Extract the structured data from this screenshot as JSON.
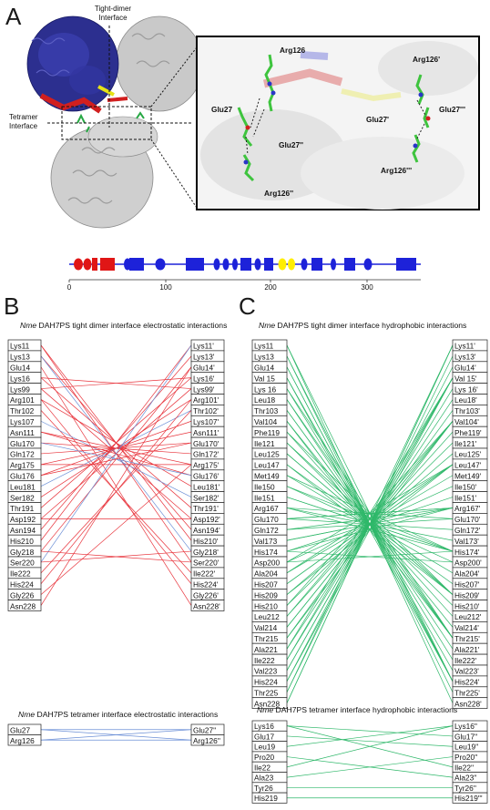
{
  "panel_a": {
    "letter": "A",
    "tight_dimer_label_line1": "Tight-dimer",
    "tight_dimer_label_line2": "Interface",
    "tetramer_label_line1": "Tetramer",
    "tetramer_label_line2": "Interface",
    "inset_labels": {
      "arg126": "Arg126",
      "glu27": "Glu27",
      "glu27pp": "Glu27''",
      "arg126pp": "Arg126''",
      "arg126p": "Arg126'",
      "glu27p": "Glu27'",
      "glu27ppp": "Glu27'''",
      "arg126ppp": "Arg126'''"
    },
    "ruler_ticks": [
      "0",
      "100",
      "200",
      "300"
    ]
  },
  "panel_b": {
    "letter": "B",
    "title_prefix": "Nme",
    "title_main": " DAH7PS tight dimer interface electrostatic interactions",
    "left": [
      "Lys11",
      "Lys13",
      "Glu14",
      "Lys16",
      "Lys99",
      "Arg101",
      "Thr102",
      "Lys107",
      "Asn111",
      "Glu170",
      "Gln172",
      "Arg175",
      "Glu176",
      "Leu181",
      "Ser182",
      "Thr191",
      "Asp192",
      "Asn194",
      "His210",
      "Gly218",
      "Ser220",
      "Ile222",
      "His224",
      "Gly226",
      "Asn228"
    ],
    "right": [
      "Lys11'",
      "Lys13'",
      "Glu14'",
      "Lys16'",
      "Lys99'",
      "Arg101'",
      "Thr102'",
      "Lys107'",
      "Asn111'",
      "Glu170'",
      "Gln172'",
      "Arg175'",
      "Glu176'",
      "Leu181'",
      "Ser182'",
      "Thr191'",
      "Asp192'",
      "Asn194'",
      "His210'",
      "Gly218'",
      "Ser220'",
      "Ile222'",
      "His224'",
      "Gly226'",
      "Asn228'"
    ],
    "tetramer_title_prefix": "Nme",
    "tetramer_title_main": " DAH7PS tetramer interface electrostatic interactions",
    "tetramer_left": [
      "Glu27",
      "Arg126"
    ],
    "tetramer_right": [
      "Glu27''",
      "Arg126''"
    ]
  },
  "panel_c": {
    "letter": "C",
    "title_prefix": "Nme",
    "title_main": " DAH7PS tight dimer interface hydrophobic interactions",
    "left": [
      "Lys11",
      "Lys13",
      "Glu14",
      "Val 15",
      "Lys 16",
      "Leu18",
      "Thr103",
      "Val104",
      "Phe119",
      "Ile121",
      "Leu125",
      "Leu147",
      "Met149",
      "Ile150",
      "Ile151",
      "Arg167",
      "Glu170",
      "Gln172",
      "Val173",
      "His174",
      "Asp200",
      "Ala204",
      "His207",
      "His209",
      "His210",
      "Leu212",
      "Val214",
      "Thr215",
      "Ala221",
      "Ile222",
      "Val223",
      "His224",
      "Thr225",
      "Asn228"
    ],
    "right": [
      "Lys11'",
      "Lys13'",
      "Glu14'",
      "Val 15'",
      "Lys 16'",
      "Leu18'",
      "Thr103'",
      "Val104'",
      "Phe119'",
      "Ile121'",
      "Leu125'",
      "Leu147'",
      "Met149'",
      "Ile150'",
      "Ile151'",
      "Arg167'",
      "Glu170'",
      "Gln172'",
      "Val173'",
      "His174'",
      "Asp200'",
      "Ala204'",
      "His207'",
      "His209'",
      "His210'",
      "Leu212'",
      "Val214'",
      "Thr215'",
      "Ala221'",
      "Ile222'",
      "Val223'",
      "His224'",
      "Thr225'",
      "Asn228'"
    ],
    "tetramer_title_prefix": "Nme",
    "tetramer_title_main": " DAH7PS tetramer interface hydrophobic interactions",
    "tetramer_left": [
      "Lys16",
      "Glu17",
      "Leu19",
      "Pro20",
      "Ile22",
      "Ala23",
      "Tyr26",
      "His219"
    ],
    "tetramer_right": [
      "Lys16''",
      "Glu17''",
      "Leu19''",
      "Pro20''",
      "Ile22''",
      "Ala23''",
      "Tyr26''",
      "His219'''"
    ]
  },
  "colors": {
    "electrostatic_red": "#e8343c",
    "electrostatic_blue": "#6b8fd6",
    "hydrophobic_green": "#2fb86a",
    "helix_blue": "#1d22d9",
    "strand_red": "#e01616",
    "strand_yellow": "#ffee00"
  }
}
